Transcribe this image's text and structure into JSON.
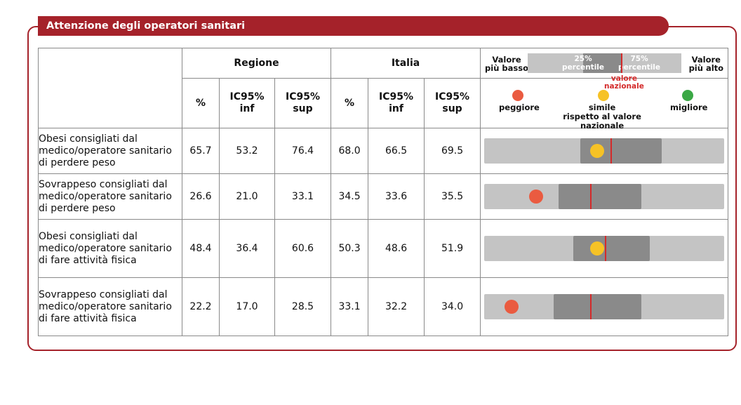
{
  "title": "Attenzione degli operatori sanitari",
  "headers": {
    "regione": "Regione",
    "italia": "Italia",
    "pct": "%",
    "inf": "IC95%\ninf",
    "sup": "IC95%\nsup"
  },
  "legend": {
    "low": "Valore\npiù basso",
    "high": "Valore\npiù alto",
    "p25": "25%\npercentile",
    "p75": "75%\npercentile",
    "national": "valore\nnazionale",
    "worse": "peggiore",
    "similar": "simile",
    "better": "migliore",
    "relative": "rispetto al valore nazionale"
  },
  "colors": {
    "brand": "#a5222a",
    "worse": "#ea5b40",
    "similar": "#f6c226",
    "better": "#3aa845",
    "national_line": "#d42a2a",
    "track": "#c4c4c4",
    "iqr": "#8a8a8a"
  },
  "rows": [
    {
      "label": "Obesi consigliati dal medico/operatore sanitario di perdere peso",
      "reg_pct": "65.7",
      "reg_inf": "53.2",
      "reg_sup": "76.4",
      "ita_pct": "68.0",
      "ita_inf": "66.5",
      "ita_sup": "69.5",
      "status": "similar",
      "range": {
        "p25": 0.4,
        "p75": 0.74,
        "national": 0.53,
        "value": 0.47
      }
    },
    {
      "label": "Sovrappeso consigliati dal medico/operatore sanitario di perdere peso",
      "reg_pct": "26.6",
      "reg_inf": "21.0",
      "reg_sup": "33.1",
      "ita_pct": "34.5",
      "ita_inf": "33.6",
      "ita_sup": "35.5",
      "status": "worse",
      "range": {
        "p25": 0.31,
        "p75": 0.655,
        "national": 0.445,
        "value": 0.215
      }
    },
    {
      "label": "Obesi consigliati dal medico/operatore sanitario di fare attività fisica",
      "reg_pct": "48.4",
      "reg_inf": "36.4",
      "reg_sup": "60.6",
      "ita_pct": "50.3",
      "ita_inf": "48.6",
      "ita_sup": "51.9",
      "status": "similar",
      "range": {
        "p25": 0.37,
        "p75": 0.69,
        "national": 0.505,
        "value": 0.47
      }
    },
    {
      "label": "Sovrappeso consigliati dal medico/operatore sanitario di fare attività fisica",
      "reg_pct": "22.2",
      "reg_inf": "17.0",
      "reg_sup": "28.5",
      "ita_pct": "33.1",
      "ita_inf": "32.2",
      "ita_sup": "34.0",
      "status": "worse",
      "range": {
        "p25": 0.29,
        "p75": 0.655,
        "national": 0.445,
        "value": 0.115
      }
    }
  ]
}
